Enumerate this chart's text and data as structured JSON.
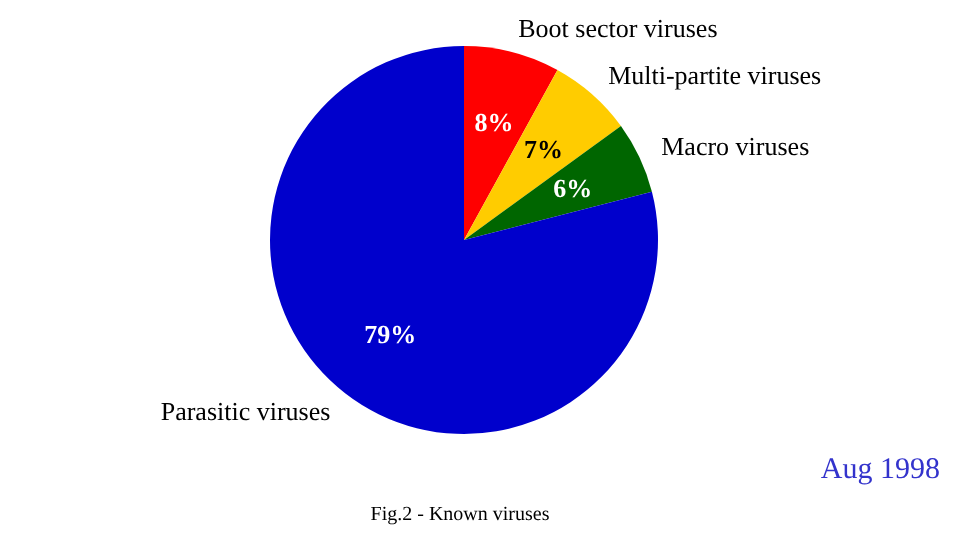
{
  "chart_data": {
    "type": "pie",
    "categories": [
      "Boot sector viruses",
      "Multi-partite viruses",
      "Macro viruses",
      "Parasitic viruses"
    ],
    "values": [
      8,
      7,
      6,
      79
    ],
    "colors": [
      "#ff0000",
      "#ffcc00",
      "#006600",
      "#0000cc"
    ],
    "value_labels": [
      "8%",
      "7%",
      "6%",
      "79%"
    ],
    "annotations": [
      "Aug 1998",
      "Fig.2 - Known viruses"
    ]
  }
}
